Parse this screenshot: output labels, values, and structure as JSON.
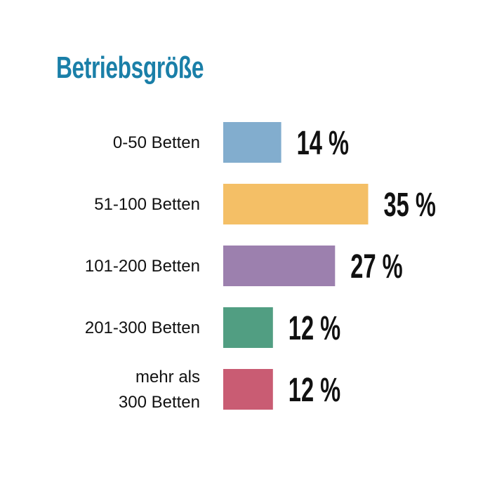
{
  "chart_data": {
    "type": "bar",
    "orientation": "horizontal",
    "title": "Betriebsgröße",
    "categories": [
      "0-50 Betten",
      "51-100 Betten",
      "101-200 Betten",
      "201-300 Betten",
      "mehr als 300 Betten"
    ],
    "category_lines": [
      [
        "0-50 Betten"
      ],
      [
        "51-100 Betten"
      ],
      [
        "101-200 Betten"
      ],
      [
        "201-300 Betten"
      ],
      [
        "mehr als",
        "300 Betten"
      ]
    ],
    "values": [
      14,
      35,
      27,
      12,
      12
    ],
    "value_labels": [
      "14 %",
      "35 %",
      "27 %",
      "12 %",
      "12 %"
    ],
    "colors": [
      "#82adce",
      "#f4bf66",
      "#9c80ae",
      "#519e82",
      "#c95c73"
    ],
    "xlim": [
      0,
      35
    ],
    "grid": false,
    "legend": "none"
  }
}
